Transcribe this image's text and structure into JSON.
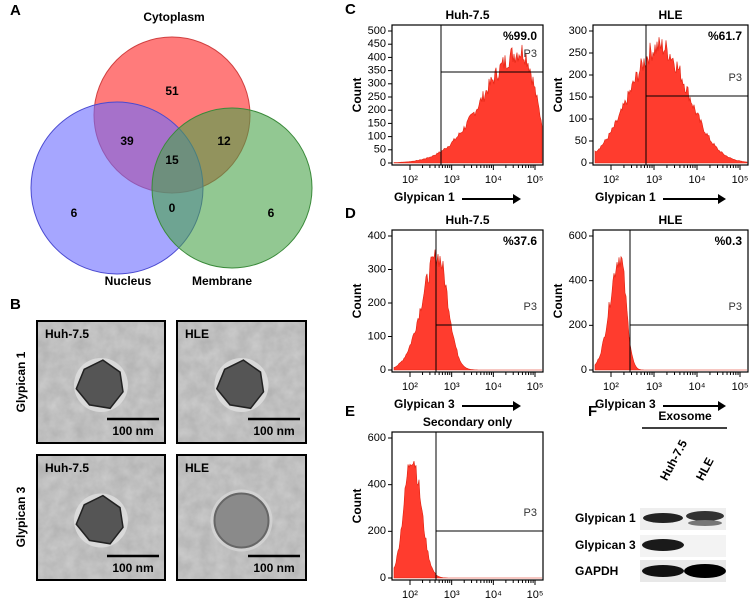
{
  "figure": {
    "panel_a": {
      "letter": "A",
      "sets": {
        "cytoplasm": "Cytoplasm",
        "nucleus": "Nucleus",
        "membrane": "Membrane"
      },
      "counts": {
        "cytoplasm_only": 51,
        "cytoplasm_nucleus": 39,
        "cytoplasm_membrane": 12,
        "all_three": 15,
        "nucleus_only": 6,
        "nucleus_membrane": 0,
        "membrane_only": 6
      }
    },
    "panel_b": {
      "letter": "B",
      "rows": [
        "Glypican 1",
        "Glypican 3"
      ],
      "images": [
        [
          "Huh-7.5",
          "HLE"
        ],
        [
          "Huh-7.5",
          "HLE"
        ]
      ],
      "scale_bar": "100 nm"
    },
    "panel_c": {
      "letter": "C",
      "plots": [
        {
          "title": "Huh-7.5",
          "percent": "%99.0",
          "gate": "P3",
          "y_label": "Count",
          "y_ticks": [
            0,
            50,
            100,
            150,
            200,
            250,
            300,
            350,
            400,
            450,
            500
          ],
          "x_ticks": [
            "10²",
            "10³",
            "10⁴",
            "10⁵"
          ],
          "x_label": "Glypican 1"
        },
        {
          "title": "HLE",
          "percent": "%61.7",
          "gate": "P3",
          "y_label": "Count",
          "y_ticks": [
            0,
            50,
            100,
            150,
            200,
            250,
            300
          ],
          "x_ticks": [
            "10²",
            "10³",
            "10⁴",
            "10⁵"
          ],
          "x_label": "Glypican 1"
        }
      ]
    },
    "panel_d": {
      "letter": "D",
      "plots": [
        {
          "title": "Huh-7.5",
          "percent": "%37.6",
          "gate": "P3",
          "y_label": "Count",
          "y_ticks": [
            0,
            100,
            200,
            300,
            400
          ],
          "x_ticks": [
            "10²",
            "10³",
            "10⁴",
            "10⁵"
          ],
          "x_label": "Glypican 3"
        },
        {
          "title": "HLE",
          "percent": "%0.3",
          "gate": "P3",
          "y_label": "Count",
          "y_ticks": [
            0,
            200,
            400,
            600
          ],
          "x_ticks": [
            "10²",
            "10³",
            "10⁴",
            "10⁵"
          ],
          "x_label": "Glypican 3"
        }
      ]
    },
    "panel_e": {
      "letter": "E",
      "plots": [
        {
          "title": "Secondary only",
          "gate": "P3",
          "y_label": "Count",
          "y_ticks": [
            0,
            200,
            400,
            600
          ],
          "x_ticks": [
            "10²",
            "10³",
            "10⁴",
            "10⁵"
          ]
        }
      ]
    },
    "panel_f": {
      "letter": "F",
      "header": "Exosome",
      "lanes": [
        "Huh-7.5",
        "HLE"
      ],
      "rows": [
        "Glypican 1",
        "Glypican 3",
        "GAPDH"
      ]
    }
  }
}
